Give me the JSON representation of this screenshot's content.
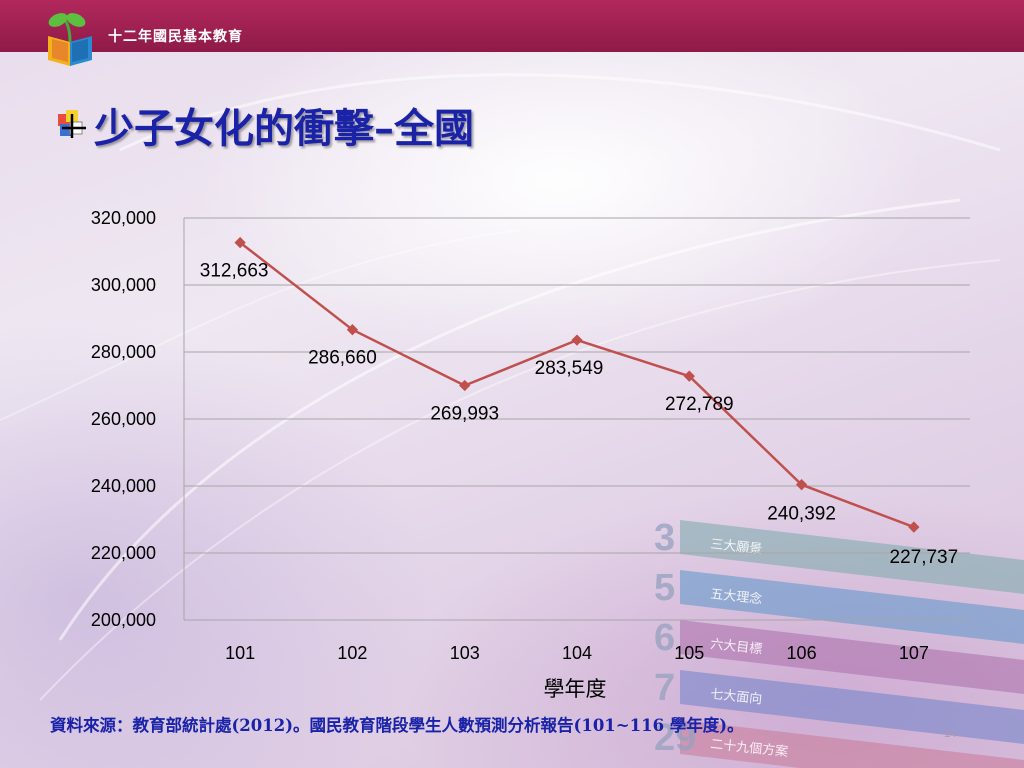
{
  "header": {
    "brand": "十二年國民基本教育",
    "logo_icon": "book-sprout-logo-icon"
  },
  "slide": {
    "title": "少子女化的衝擊–全國",
    "bullet_icon": "plus-square-bullet-icon",
    "source": "資料來源：教育部統計處(2012)。國民教育階段學生人數預測分析報告(101~116 學年度)。",
    "page_number": "14"
  },
  "decoration": {
    "labels": [
      {
        "num": "3",
        "text": "三大願景"
      },
      {
        "num": "5",
        "text": "五大理念"
      },
      {
        "num": "6",
        "text": "六大目標"
      },
      {
        "num": "7",
        "text": "七大面向"
      },
      {
        "num": "29",
        "text": "二十九個方案"
      }
    ]
  },
  "colors": {
    "line": "#c0504d",
    "title": "#1a23a8",
    "topbar": "#9e2050",
    "grid": "#a6a6a6"
  },
  "chart_data": {
    "type": "line",
    "title": "",
    "xlabel": "學年度",
    "ylabel": "",
    "categories": [
      "101",
      "102",
      "103",
      "104",
      "105",
      "106",
      "107"
    ],
    "series": [
      {
        "values": [
          312663,
          286660,
          269993,
          283549,
          272789,
          240392,
          227737
        ]
      }
    ],
    "data_labels": [
      "312,663",
      "286,660",
      "269,993",
      "283,549",
      "272,789",
      "240,392",
      "227,737"
    ],
    "ylim": [
      200000,
      320000
    ],
    "yticks": [
      200000,
      220000,
      240000,
      260000,
      280000,
      300000,
      320000
    ],
    "ytick_labels": [
      "200,000",
      "220,000",
      "240,000",
      "260,000",
      "280,000",
      "300,000",
      "320,000"
    ],
    "grid": true,
    "legend": "none",
    "marker": "diamond"
  }
}
